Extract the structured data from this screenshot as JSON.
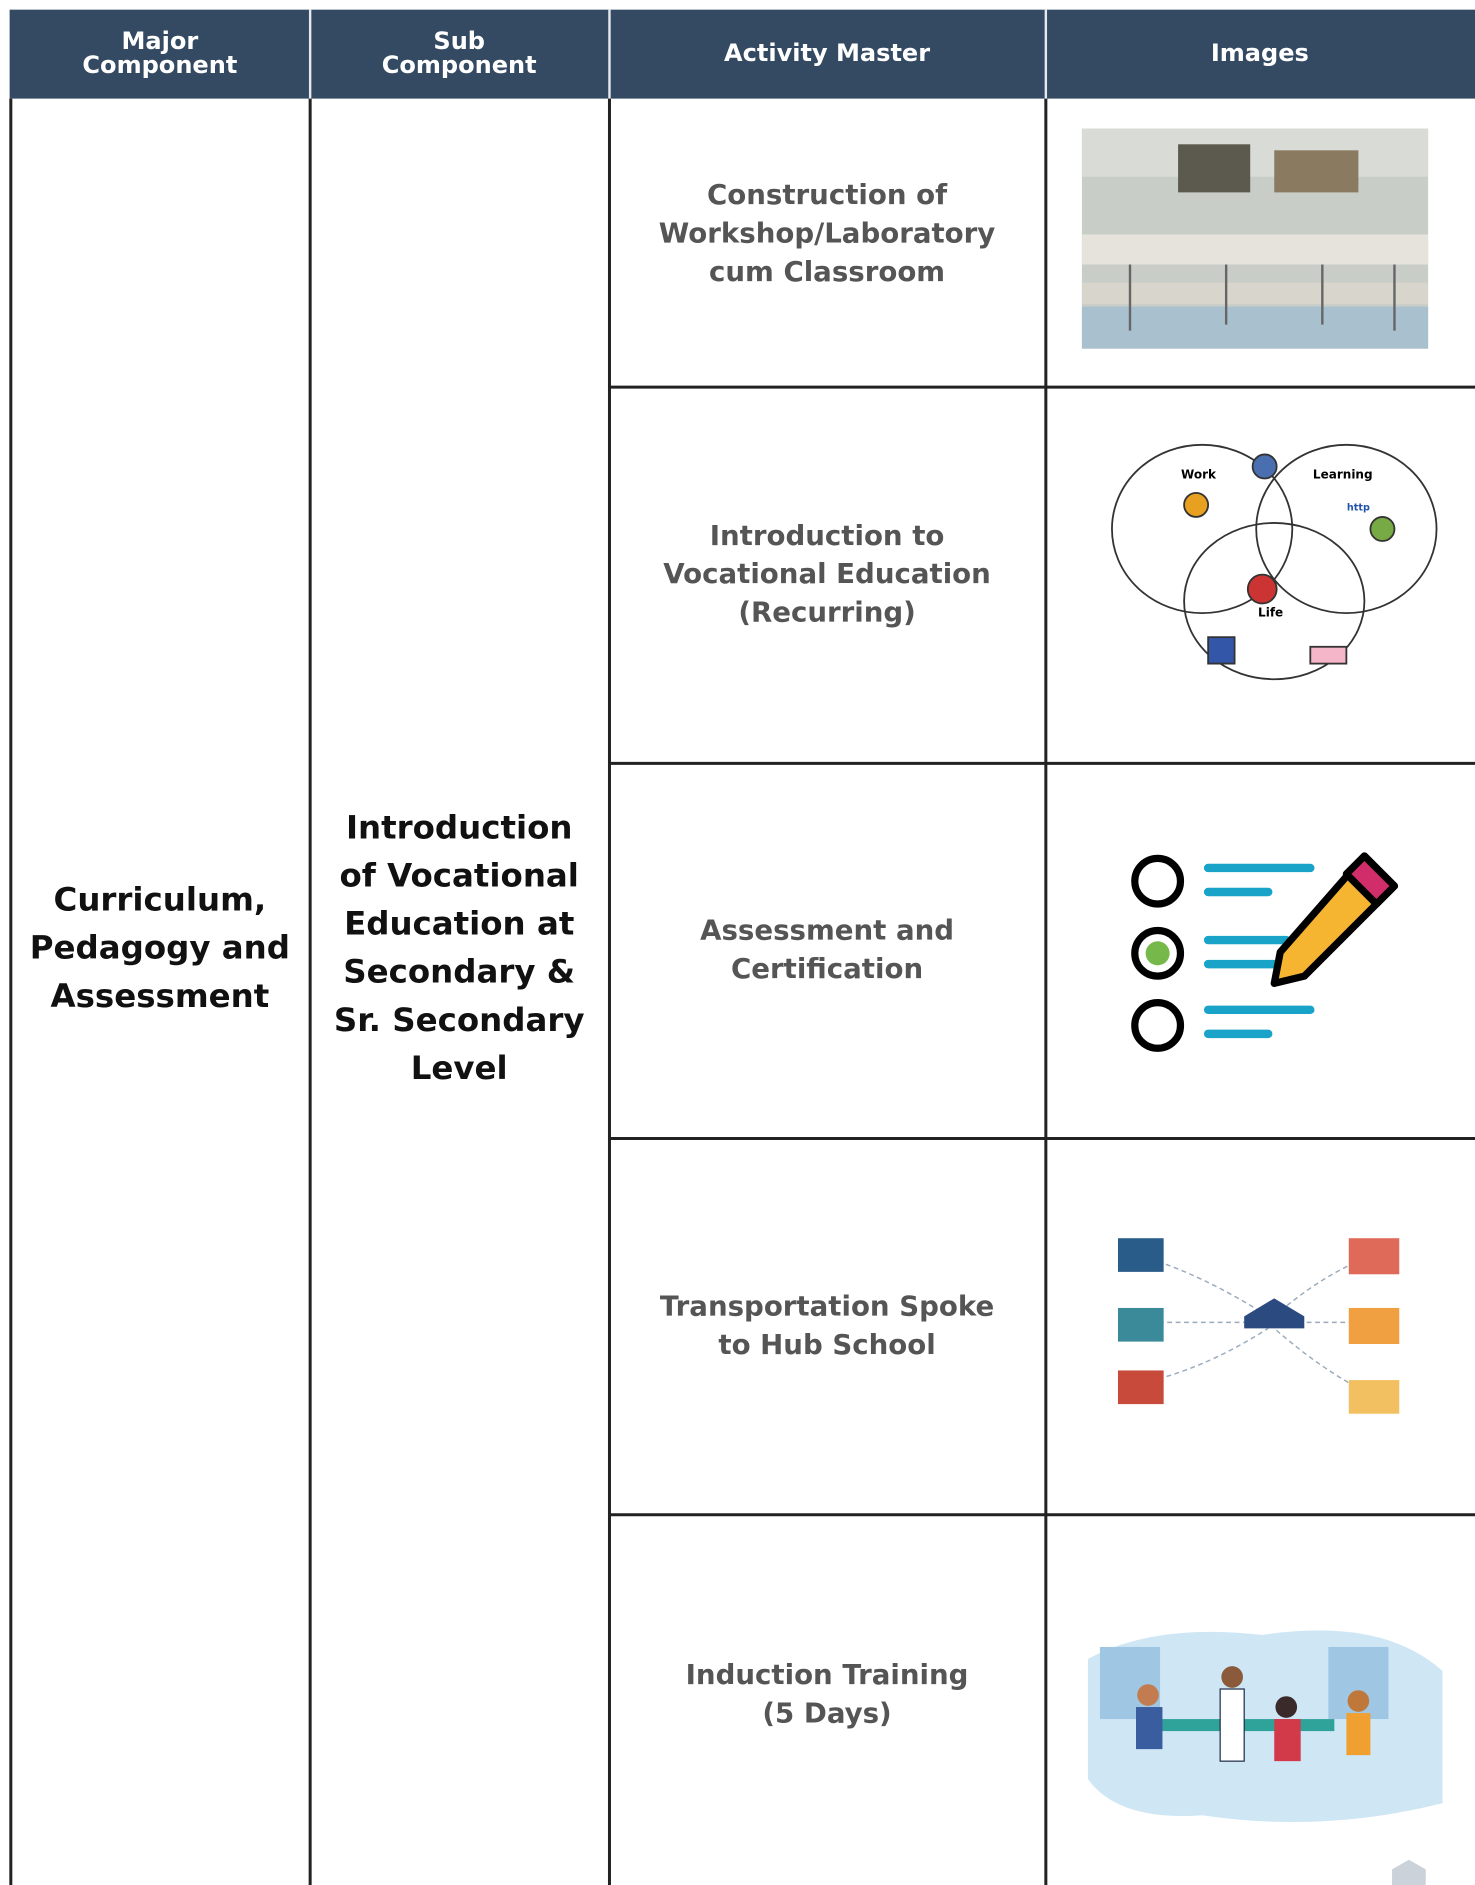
{
  "table": {
    "headers": [
      [
        "Major",
        "Component"
      ],
      [
        "Sub",
        "Component"
      ],
      [
        "Activity Master"
      ],
      [
        "Images"
      ]
    ],
    "major_component": [
      "Curriculum,",
      "Pedagogy and",
      "Assessment"
    ],
    "sub_component": [
      "Introduction",
      "of Vocational",
      "Education at",
      "Secondary &",
      "Sr. Secondary",
      "Level"
    ],
    "activities": [
      [
        "Construction of",
        "Workshop/Laboratory",
        "cum Classroom"
      ],
      [
        "Introduction to",
        "Vocational Education",
        "(Recurring)"
      ],
      [
        "Assessment and",
        "Certification"
      ],
      [
        "Transportation Spoke",
        "to Hub School"
      ],
      [
        "Induction Training",
        "(5 Days)"
      ]
    ],
    "image_labels": {
      "work": "Work",
      "learning": "Learning",
      "life": "Life",
      "http": "http"
    }
  }
}
